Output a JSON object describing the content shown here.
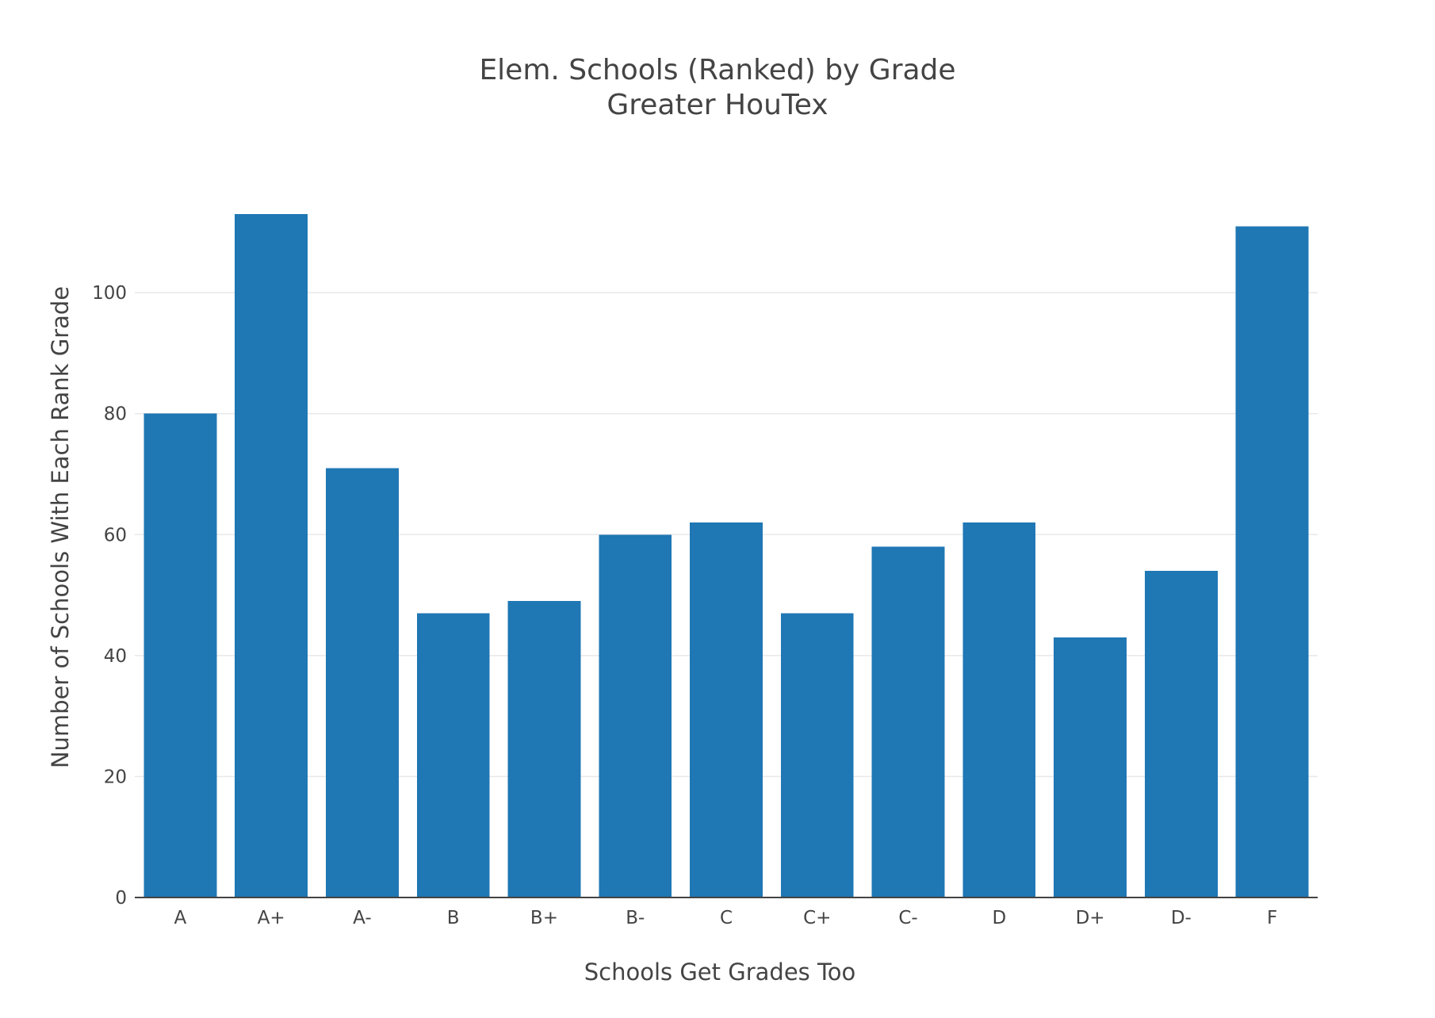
{
  "chart_data": {
    "type": "bar",
    "title": "Elem. Schools (Ranked) by Grade",
    "subtitle": "Greater HouTex",
    "xlabel": "Schools Get Grades Too",
    "ylabel": "Number of Schools With Each Rank Grade",
    "categories": [
      "A",
      "A+",
      "A-",
      "B",
      "B+",
      "B-",
      "C",
      "C+",
      "C-",
      "D",
      "D+",
      "D-",
      "F"
    ],
    "values": [
      80,
      113,
      71,
      47,
      49,
      60,
      62,
      47,
      58,
      62,
      43,
      54,
      111
    ],
    "yticks": [
      0,
      20,
      40,
      60,
      80,
      100
    ],
    "ylim": [
      0,
      118.9
    ],
    "grid": true,
    "bar_color": "#1f77b4"
  }
}
